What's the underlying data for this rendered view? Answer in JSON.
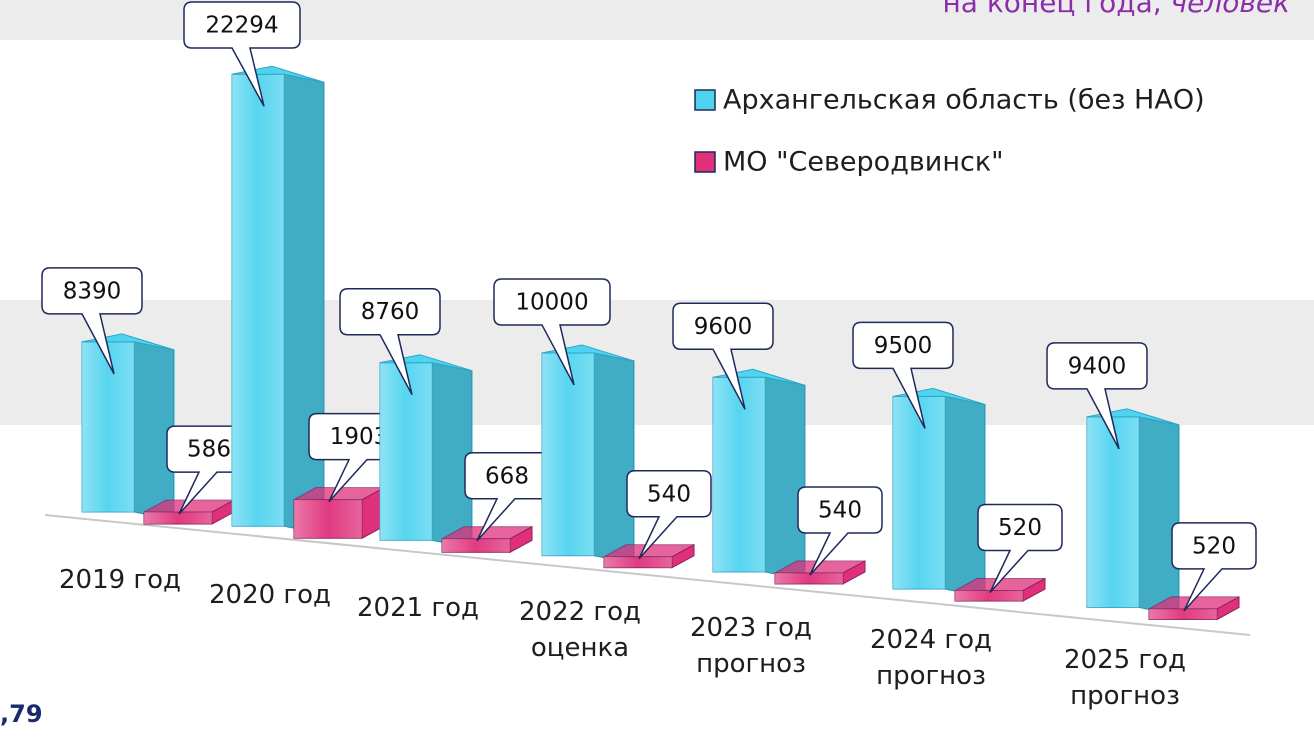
{
  "chart_data": {
    "type": "bar3d",
    "title": "на конец года,",
    "title_unit": "человек",
    "categories": [
      "2019 год",
      "2020 год",
      "2021 год",
      "2022 год\nоценка",
      "2023 год\nпрогноз",
      "2024 год\nпрогноз",
      "2025 год\nпрогноз"
    ],
    "series": [
      {
        "name": "Архангельская область (без НАО)",
        "color": "#4fd3ef",
        "values": [
          8390,
          22294,
          8760,
          10000,
          9600,
          9500,
          9400
        ]
      },
      {
        "name": "МО \"Северодвинск\"",
        "color": "#e0307a",
        "values": [
          586,
          1903,
          668,
          540,
          540,
          520,
          520
        ]
      }
    ],
    "annotations": [
      ",79"
    ]
  }
}
